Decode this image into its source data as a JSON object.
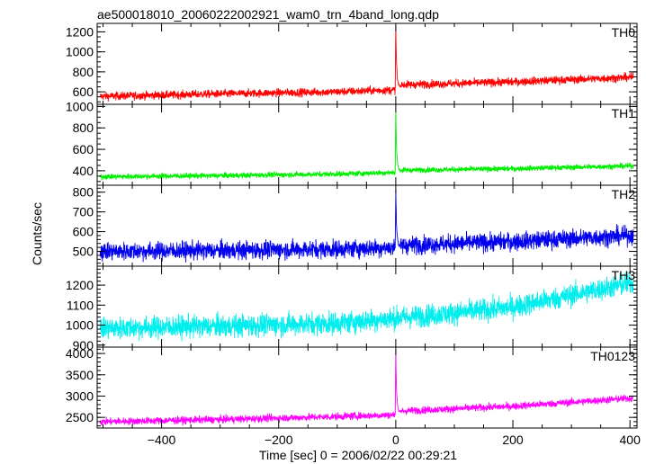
{
  "chart_data": {
    "type": "line",
    "title": "ae500018010_20060222002921_wam0_trn_4band_long.qdp",
    "xlabel": "Time [sec] 0 = 2006/02/22 00:29:21",
    "ylabel": "Counts/sec",
    "xlim": [
      -510,
      412
    ],
    "xticks": [
      -400,
      -200,
      0,
      200,
      400
    ],
    "grid": false,
    "panels": [
      {
        "name": "TH0",
        "color": "#ff0000",
        "ylim": [
          475,
          1285
        ],
        "yticks": [
          600,
          800,
          1000,
          1200
        ],
        "trend": [
          [
            -500,
            555
          ],
          [
            -300,
            580
          ],
          [
            -100,
            600
          ],
          [
            0,
            620
          ],
          [
            10,
            670
          ],
          [
            200,
            700
          ],
          [
            400,
            745
          ]
        ],
        "noise": 40,
        "peak": {
          "x": 0,
          "y": 1285
        }
      },
      {
        "name": "TH1",
        "color": "#00ee00",
        "ylim": [
          265,
          1020
        ],
        "yticks": [
          400,
          600,
          800,
          1000
        ],
        "trend": [
          [
            -500,
            345
          ],
          [
            -300,
            355
          ],
          [
            -100,
            370
          ],
          [
            0,
            385
          ],
          [
            10,
            405
          ],
          [
            200,
            420
          ],
          [
            400,
            445
          ]
        ],
        "noise": 25,
        "peak": {
          "x": 0,
          "y": 1020
        }
      },
      {
        "name": "TH2",
        "color": "#0000ee",
        "ylim": [
          425,
          835
        ],
        "yticks": [
          500,
          600,
          700,
          800
        ],
        "trend": [
          [
            -500,
            500
          ],
          [
            -300,
            505
          ],
          [
            -100,
            512
          ],
          [
            0,
            520
          ],
          [
            10,
            530
          ],
          [
            200,
            550
          ],
          [
            400,
            580
          ]
        ],
        "noise": 45,
        "peak": {
          "x": 0,
          "y": 830
        }
      },
      {
        "name": "TH3",
        "color": "#00eeee",
        "ylim": [
          890,
          1295
        ],
        "yticks": [
          900,
          1000,
          1100,
          1200
        ],
        "trend": [
          [
            -500,
            985
          ],
          [
            -300,
            995
          ],
          [
            -100,
            1010
          ],
          [
            0,
            1035
          ],
          [
            100,
            1060
          ],
          [
            200,
            1090
          ],
          [
            300,
            1150
          ],
          [
            400,
            1210
          ]
        ],
        "noise": 55,
        "peak": null
      },
      {
        "name": "TH0123",
        "color": "#ff00ff",
        "ylim": [
          2250,
          4150
        ],
        "yticks": [
          2500,
          3000,
          3500,
          4000
        ],
        "trend": [
          [
            -500,
            2400
          ],
          [
            -300,
            2450
          ],
          [
            -100,
            2520
          ],
          [
            0,
            2560
          ],
          [
            10,
            2650
          ],
          [
            200,
            2760
          ],
          [
            400,
            2950
          ]
        ],
        "noise": 85,
        "peak": {
          "x": 0,
          "y": 4150
        }
      }
    ]
  }
}
